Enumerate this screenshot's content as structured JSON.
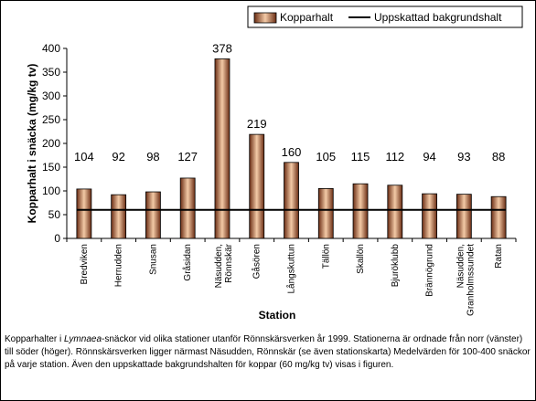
{
  "chart_data": {
    "type": "bar",
    "categories": [
      "Bredviken",
      "Herrudden",
      "Snusan",
      "Gråsidan",
      "Näsudden, Rönnskär",
      "Gåsören",
      "Långskuttun",
      "Tällön",
      "Skallön",
      "Bjuröklubb",
      "Brännögrund",
      "Näsudden, Granholmssundet",
      "Ratan"
    ],
    "series": [
      {
        "name": "Kopparhalt",
        "values": [
          104,
          92,
          98,
          127,
          378,
          219,
          160,
          105,
          115,
          112,
          94,
          93,
          88
        ],
        "data_labels": [
          "104",
          "92",
          "98",
          "127",
          "378",
          "219",
          "160",
          "105",
          "115",
          "112",
          "94",
          "93",
          "88"
        ]
      },
      {
        "name": "Uppskattad bakgrundshalt",
        "type": "line",
        "value": 60
      }
    ],
    "xlabel": "Station",
    "ylabel": "Kopparhalt i snäcka (mg/kg tv)",
    "ylim": [
      0,
      400
    ],
    "yticks": [
      0,
      50,
      100,
      150,
      200,
      250,
      300,
      350,
      400
    ],
    "ytick_labels": [
      "0",
      "50",
      "100",
      "150",
      "200",
      "250",
      "300",
      "350",
      "400"
    ],
    "legend_position": "top-right",
    "grid": false,
    "colors": {
      "bar_dark": "#6b2d14",
      "bar_light": "#f3caa6",
      "line": "#000000"
    }
  },
  "caption": {
    "part1": "Kopparhalter i ",
    "species": "Lymnaea",
    "part2": "-snäckor vid olika stationer utanför Rönnskärsverken år 1999. Stationerna är ordnade från norr (vänster) till söder (höger). Rönnskärsverken ligger närmast Näsudden, Rönnskär (se även stationskarta) Medelvärden för 100-400 snäckor på varje station. Även den uppskattade bakgrundshalten för koppar (60 mg/kg tv) visas i figuren."
  }
}
